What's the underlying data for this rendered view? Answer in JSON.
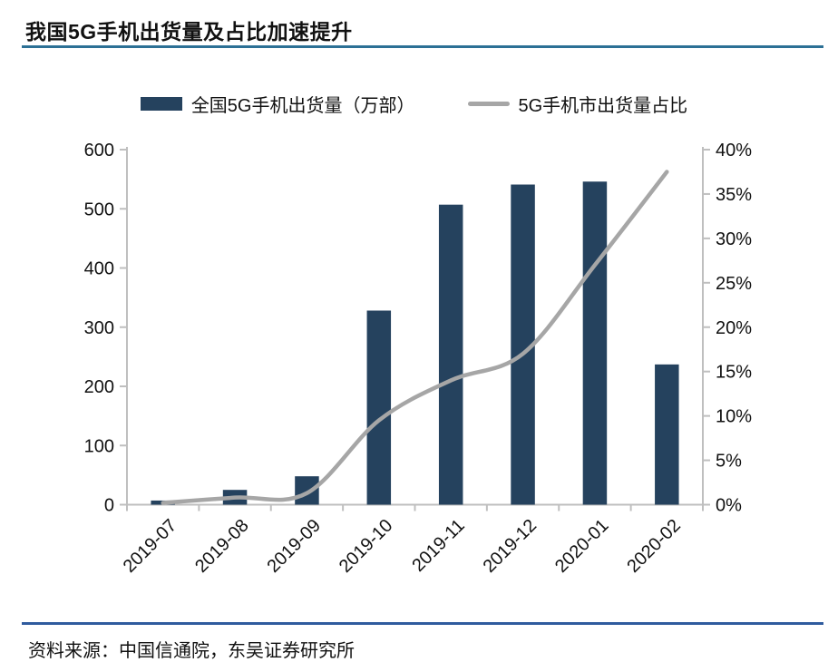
{
  "title": {
    "text": "我国5G手机出货量及占比加速提升"
  },
  "legend": [
    {
      "label": "全国5G手机出货量（万部）",
      "type": "bar-swatch"
    },
    {
      "label": "5G手机市出货量占比",
      "type": "line-swatch"
    }
  ],
  "footer": {
    "text": "资料来源：中国信通院，东吴证券研究所"
  },
  "colors": {
    "bar": "#25425e",
    "line": "#a6a6a6",
    "axis": "#bfbfbf",
    "tick_text": "#111111",
    "title_rule": "#2c7095",
    "footer_rule": "#2f5b9e"
  },
  "chart_data": {
    "type": "bar",
    "subtype": "bar+line dual axis",
    "title": "我国5G手机出货量及占比加速提升",
    "categories": [
      "2019-07",
      "2019-08",
      "2019-09",
      "2019-10",
      "2019-11",
      "2019-12",
      "2020-01",
      "2020-02"
    ],
    "series": [
      {
        "name": "全国5G手机出货量（万部）",
        "type": "bar",
        "axis": "left",
        "values": [
          7,
          25,
          48,
          328,
          507,
          541,
          546,
          237
        ]
      },
      {
        "name": "5G手机市出货量占比",
        "type": "line",
        "axis": "right",
        "unit": "%",
        "values": [
          0.2,
          0.8,
          1.3,
          9.5,
          14,
          17,
          27,
          37.5
        ]
      }
    ],
    "left_axis": {
      "min": 0,
      "max": 600,
      "step": 100,
      "tick_labels": [
        "0",
        "100",
        "200",
        "300",
        "400",
        "500",
        "600"
      ]
    },
    "right_axis": {
      "min": 0,
      "max": 40,
      "step": 5,
      "tick_labels": [
        "0%",
        "5%",
        "10%",
        "15%",
        "20%",
        "25%",
        "30%",
        "35%",
        "40%"
      ]
    },
    "grid": false,
    "legend_position": "top",
    "x_label_rotation": -45,
    "source": "资料来源：中国信通院，东吴证券研究所"
  }
}
